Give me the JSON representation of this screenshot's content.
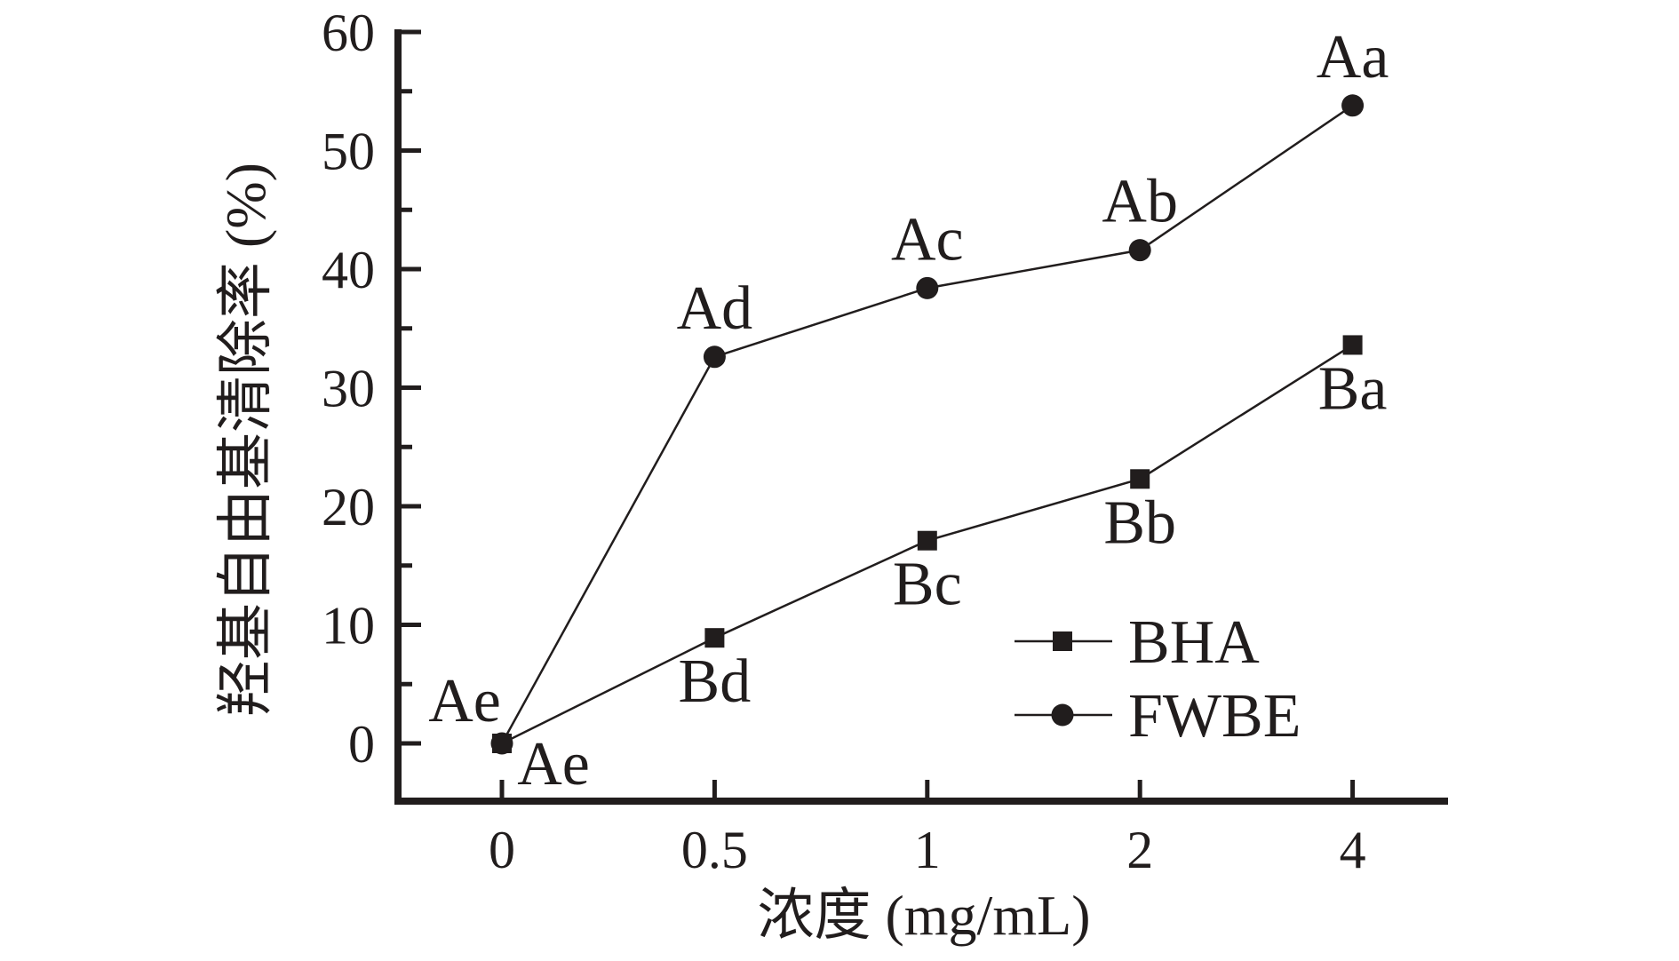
{
  "figure": {
    "background": "#ffffff",
    "ink_color": "#211d1d"
  },
  "chart_data": {
    "type": "line",
    "title": "",
    "xlabel": "浓度 (mg/mL)",
    "ylabel": "羟基自由基清除率 (%)",
    "categories": [
      "0",
      "0.5",
      "1",
      "2",
      "4"
    ],
    "x_values": [
      0,
      0.5,
      1,
      2,
      4
    ],
    "ylim": [
      0,
      60
    ],
    "yticks": [
      0,
      10,
      20,
      30,
      40,
      50,
      60
    ],
    "y_minor_tick_step": 5,
    "grid": "off",
    "legend_position": "inside-lower-right",
    "series": [
      {
        "name": "BHA",
        "marker": "square",
        "values": [
          0,
          8.9,
          17.1,
          22.3,
          33.6
        ],
        "point_labels": [
          "Ae",
          "Bd",
          "Bc",
          "Bb",
          "Ba"
        ],
        "label_position": "below"
      },
      {
        "name": "FWBE",
        "marker": "circle",
        "values": [
          0,
          32.6,
          38.4,
          41.6,
          53.8
        ],
        "point_labels": [
          "Ae",
          "Ad",
          "Ac",
          "Ab",
          "Aa"
        ],
        "label_position": "above"
      }
    ]
  }
}
